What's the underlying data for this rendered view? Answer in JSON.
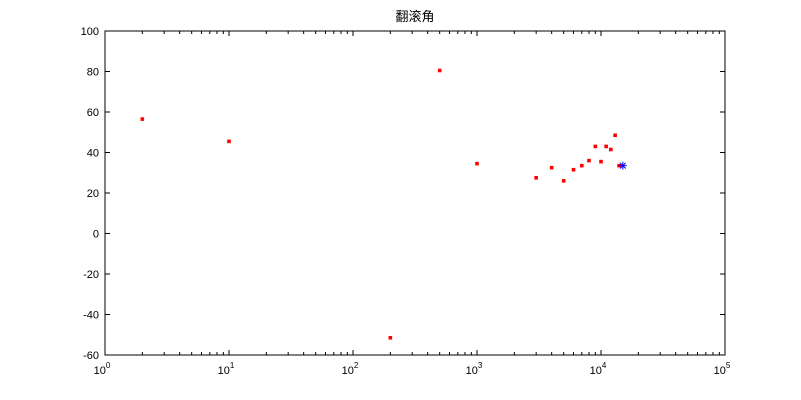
{
  "chart_data": {
    "type": "scatter",
    "title": "翻滚角",
    "xlabel": "",
    "ylabel": "",
    "xscale": "log",
    "xlim": [
      1,
      100000
    ],
    "ylim": [
      -60,
      100
    ],
    "grid": false,
    "x_ticks": [
      {
        "value": 1,
        "base": "10",
        "exp": "0"
      },
      {
        "value": 10,
        "base": "10",
        "exp": "1"
      },
      {
        "value": 100,
        "base": "10",
        "exp": "2"
      },
      {
        "value": 1000,
        "base": "10",
        "exp": "3"
      },
      {
        "value": 10000,
        "base": "10",
        "exp": "4"
      },
      {
        "value": 100000,
        "base": "10",
        "exp": "5"
      }
    ],
    "y_ticks": [
      -60,
      -40,
      -20,
      0,
      20,
      40,
      60,
      80,
      100
    ],
    "series": [
      {
        "marker": "dot",
        "color": "#ff0000",
        "points": [
          [
            2,
            56.5
          ],
          [
            10,
            45.5
          ],
          [
            200,
            -51.5
          ],
          [
            500,
            80.5
          ],
          [
            1000,
            34.5
          ],
          [
            3000,
            27.5
          ],
          [
            4000,
            32.5
          ],
          [
            5000,
            26
          ],
          [
            6000,
            31.5
          ],
          [
            7000,
            33.5
          ],
          [
            8000,
            36
          ],
          [
            9000,
            43
          ],
          [
            10000,
            35.5
          ],
          [
            11000,
            43
          ],
          [
            12000,
            41.5
          ],
          [
            13000,
            48.5
          ],
          [
            14000,
            33.5
          ]
        ]
      },
      {
        "marker": "star",
        "color": "#0000ff",
        "points": [
          [
            15000,
            33.5
          ]
        ]
      }
    ]
  }
}
